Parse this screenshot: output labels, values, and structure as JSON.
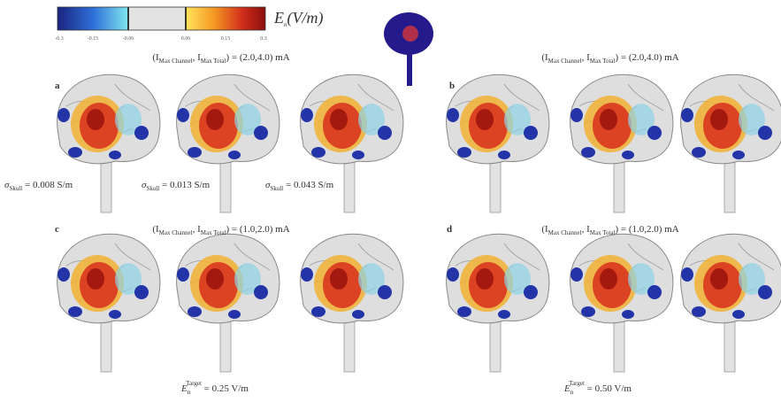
{
  "colorbar": {
    "label": {
      "symbol": "E",
      "sub": "n",
      "rest": "(V/m)"
    },
    "ticks": [
      "-0.3",
      "-0.15",
      "-0.06",
      "0.06",
      "0.15",
      "0.3"
    ]
  },
  "panels": [
    {
      "label": "a",
      "caption": {
        "open": "(I",
        "sub1": "Max Channel",
        "mid": ", I",
        "sub2": "Max Total",
        "rest": ") = (2.0,4.0) mA"
      }
    },
    {
      "label": "b",
      "caption": {
        "open": "(I",
        "sub1": "Max Channel",
        "mid": ", I",
        "sub2": "Max Total",
        "rest": ") = (2.0,4.0) mA"
      }
    },
    {
      "label": "c",
      "caption": {
        "open": "(I",
        "sub1": "Max Channel",
        "mid": ", I",
        "sub2": "Max Total",
        "rest": ") = (1.0,2.0) mA"
      }
    },
    {
      "label": "d",
      "caption": {
        "open": "(I",
        "sub1": "Max Channel",
        "mid": ", I",
        "sub2": "Max Total",
        "rest": ") = (1.0,2.0) mA"
      }
    }
  ],
  "conductivities": [
    {
      "symbol": "σ",
      "sub": "Skull",
      "rest": " = 0.008 S/m"
    },
    {
      "symbol": "σ",
      "sub": "Skull",
      "rest": " = 0.013 S/m"
    },
    {
      "symbol": "σ",
      "sub": "Skull",
      "rest": " = 0.043 S/m"
    }
  ],
  "targets": [
    {
      "symbol": "E",
      "sub": "n",
      "sup": "Target",
      "rest": " = 0.25 V/m"
    },
    {
      "symbol": "E",
      "sub": "n",
      "sup": "Target",
      "rest": " = 0.50 V/m"
    }
  ]
}
